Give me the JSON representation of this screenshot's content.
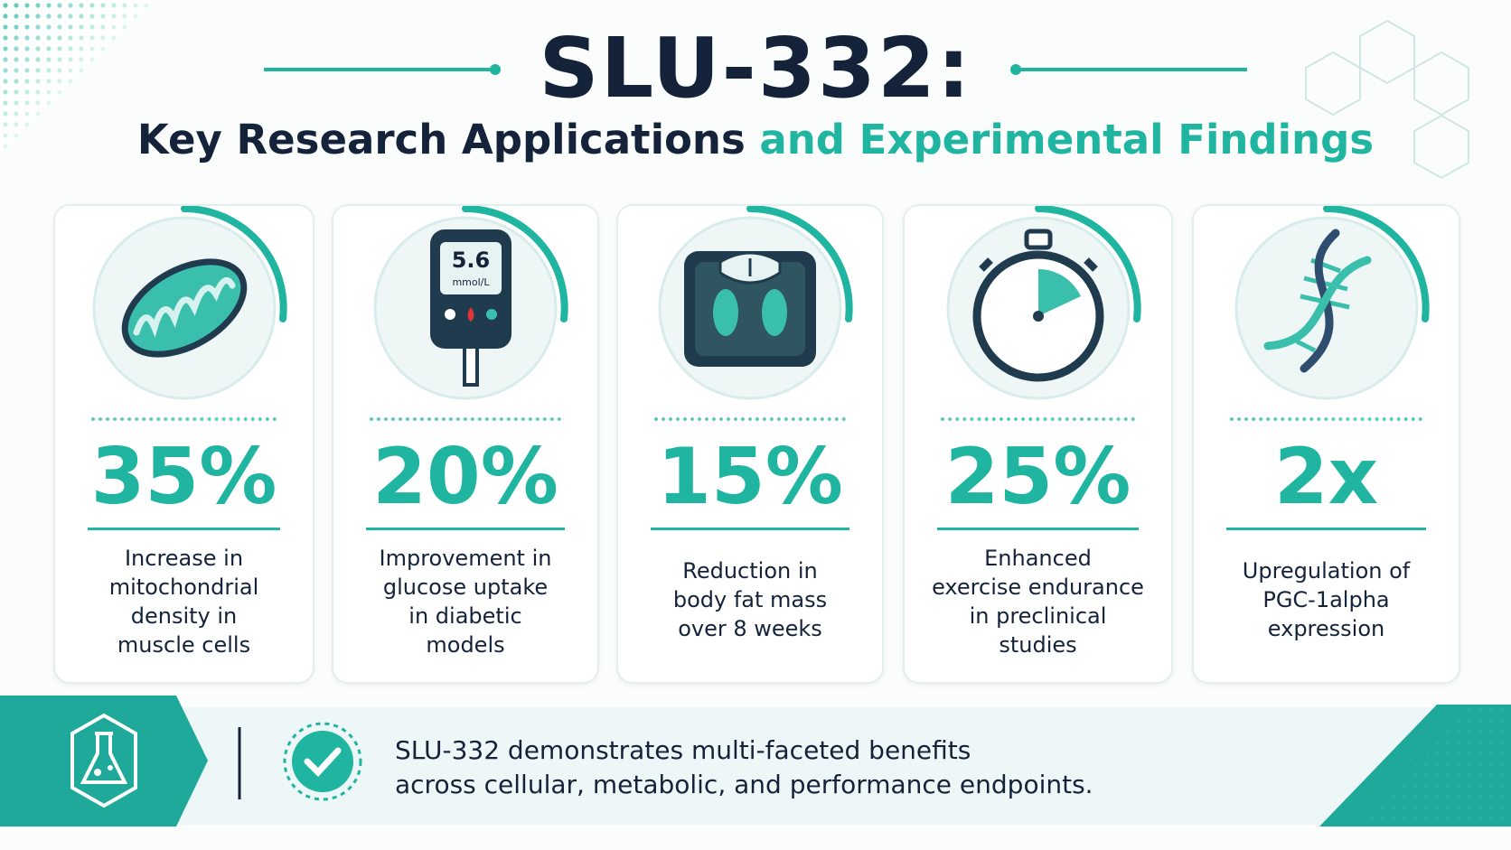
{
  "header": {
    "title": "SLU-332:",
    "subtitle_main": "Key Research Applications",
    "subtitle_accent": "and Experimental Findings"
  },
  "cards": [
    {
      "stat": "35%",
      "description": [
        "Increase in",
        "mitochondrial",
        "density in",
        "muscle cells"
      ]
    },
    {
      "stat": "20%",
      "description": [
        "Improvement in",
        "glucose uptake",
        "in diabetic",
        "models"
      ],
      "icon_text": [
        "5.6",
        "mmol/L"
      ]
    },
    {
      "stat": "15%",
      "description": [
        "Reduction in",
        "body fat mass",
        "over 8 weeks"
      ]
    },
    {
      "stat": "25%",
      "description": [
        "Enhanced",
        "exercise endurance",
        "in preclinical",
        "studies"
      ]
    },
    {
      "stat": "2x",
      "description": [
        "Upregulation of",
        "PGC-1alpha",
        "expression"
      ]
    }
  ],
  "footer": {
    "message": [
      "SLU-332 demonstrates multi-faceted benefits",
      "across cellular, metabolic, and performance endpoints."
    ]
  }
}
